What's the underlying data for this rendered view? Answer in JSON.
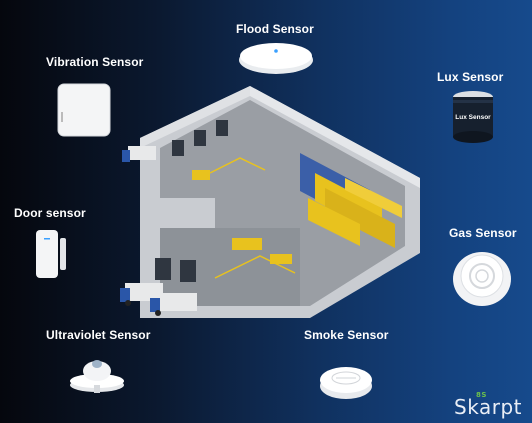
{
  "sensors": {
    "flood": "Flood Sensor",
    "vibration": "Vibration Sensor",
    "lux": "Lux Sensor",
    "door": "Door sensor",
    "gas": "Gas Sensor",
    "ultraviolet": "Ultraviolet Sensor",
    "smoke": "Smoke Sensor"
  },
  "device_text": {
    "lux_label": "Lux Sensor"
  },
  "brand": {
    "name": "Skarpt",
    "mark": "8S"
  },
  "colors": {
    "accent_green": "#6bc04b",
    "shelf_yellow": "#e8c21e",
    "floor_gray": "#9a9ea4"
  }
}
